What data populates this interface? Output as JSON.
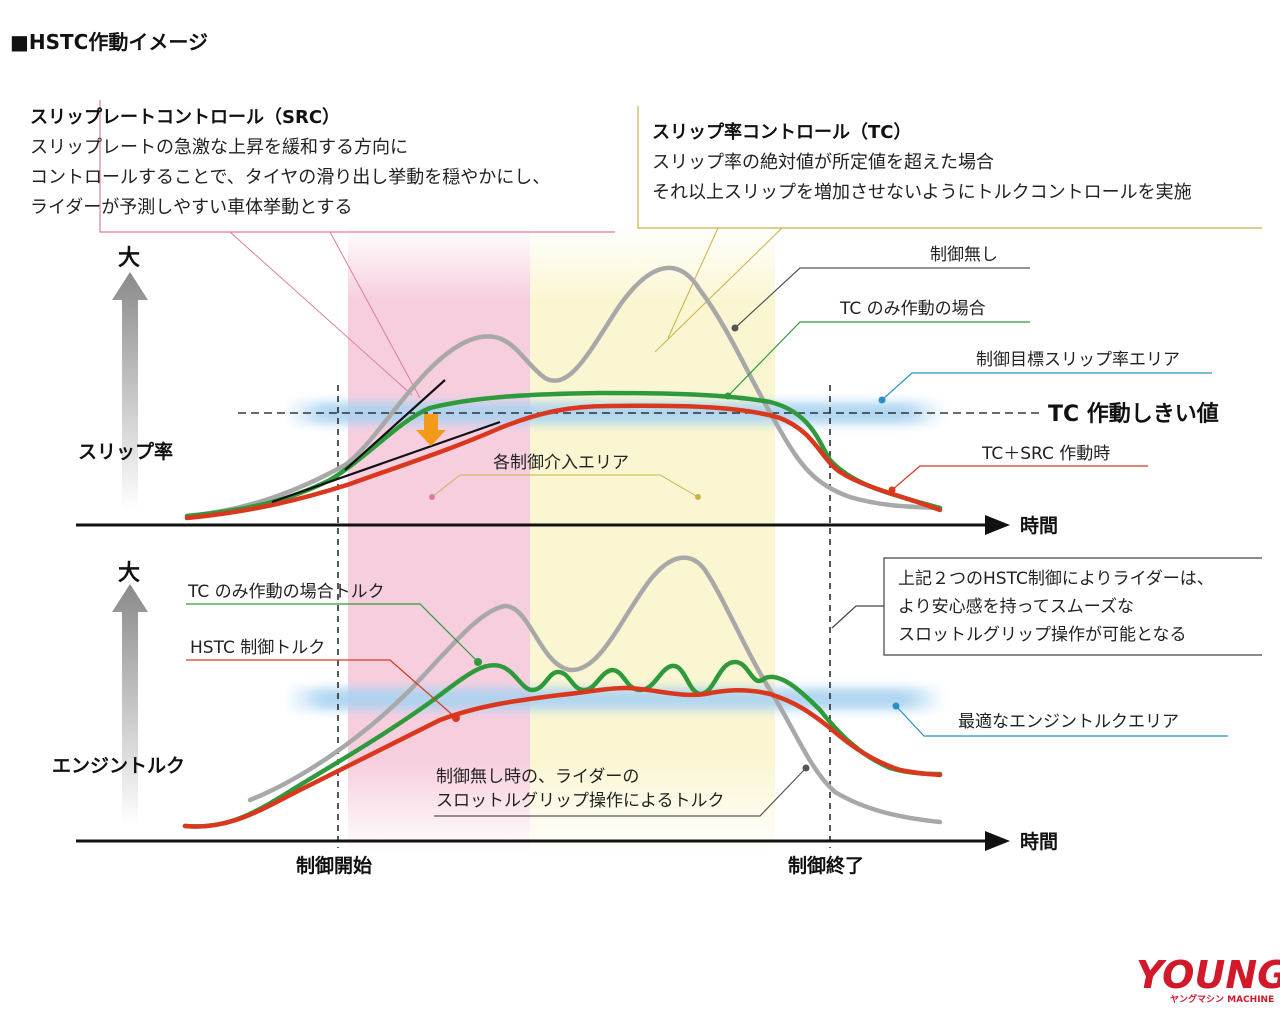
{
  "title": "■HSTC作動イメージ",
  "src_box": {
    "heading": "スリップレートコントロール（SRC）",
    "lines": [
      "スリップレートの急激な上昇を緩和する方向に",
      "コントロールすることで、タイヤの滑り出し挙動を穏やかにし、",
      "ライダーが予測しやすい車体挙動とする"
    ]
  },
  "tc_box": {
    "heading": "スリップ率コントロール（TC）",
    "lines": [
      "スリップ率の絶対値が所定値を超えた場合",
      "それ以上スリップを増加させないようにトルクコントロールを実施"
    ]
  },
  "hstc_box": {
    "lines": [
      "上記２つのHSTC制御によりライダーは、",
      "より安心感を持ってスムーズな",
      "スロットルグリップ操作が可能となる"
    ]
  },
  "top_chart": {
    "y_big": "大",
    "y_label": "スリップ率",
    "x_label": "時間",
    "threshold_label": "TC 作動しきい値",
    "legend": {
      "no_control": "制御無し",
      "tc_only": "TC のみ作動の場合",
      "target_area": "制御目標スリップ率エリア",
      "tc_src": "TC＋SRC 作動時"
    },
    "intervention_area": "各制御介入エリア"
  },
  "bottom_chart": {
    "y_big": "大",
    "y_label": "エンジントルク",
    "x_label": "時間",
    "legend": {
      "tc_only_torque": "TC のみ作動の場合トルク",
      "hstc_torque": "HSTC 制御トルク",
      "optimal_area": "最適なエンジントルクエリア"
    },
    "no_control_note": [
      "制御無し時の、ライダーの",
      "スロットルグリップ操作によるトルク"
    ]
  },
  "markers": {
    "start": "制御開始",
    "end": "制御終了"
  },
  "logo": {
    "main": "YOUNG",
    "sub": "ヤングマシン MACHINE"
  },
  "colors": {
    "pink_zone": "#f6c9da",
    "yellow_zone": "#fbf7d8",
    "blue_band": "#a9d3f1",
    "gray_line": "#a8a8a8",
    "green_line": "#2f9a3b",
    "red_line": "#d9381e",
    "pink_leader": "#e07aa3",
    "gold_leader": "#c8b24a",
    "blue_leader": "#2a8fc7",
    "arrow_orange": "#f39a1b"
  }
}
